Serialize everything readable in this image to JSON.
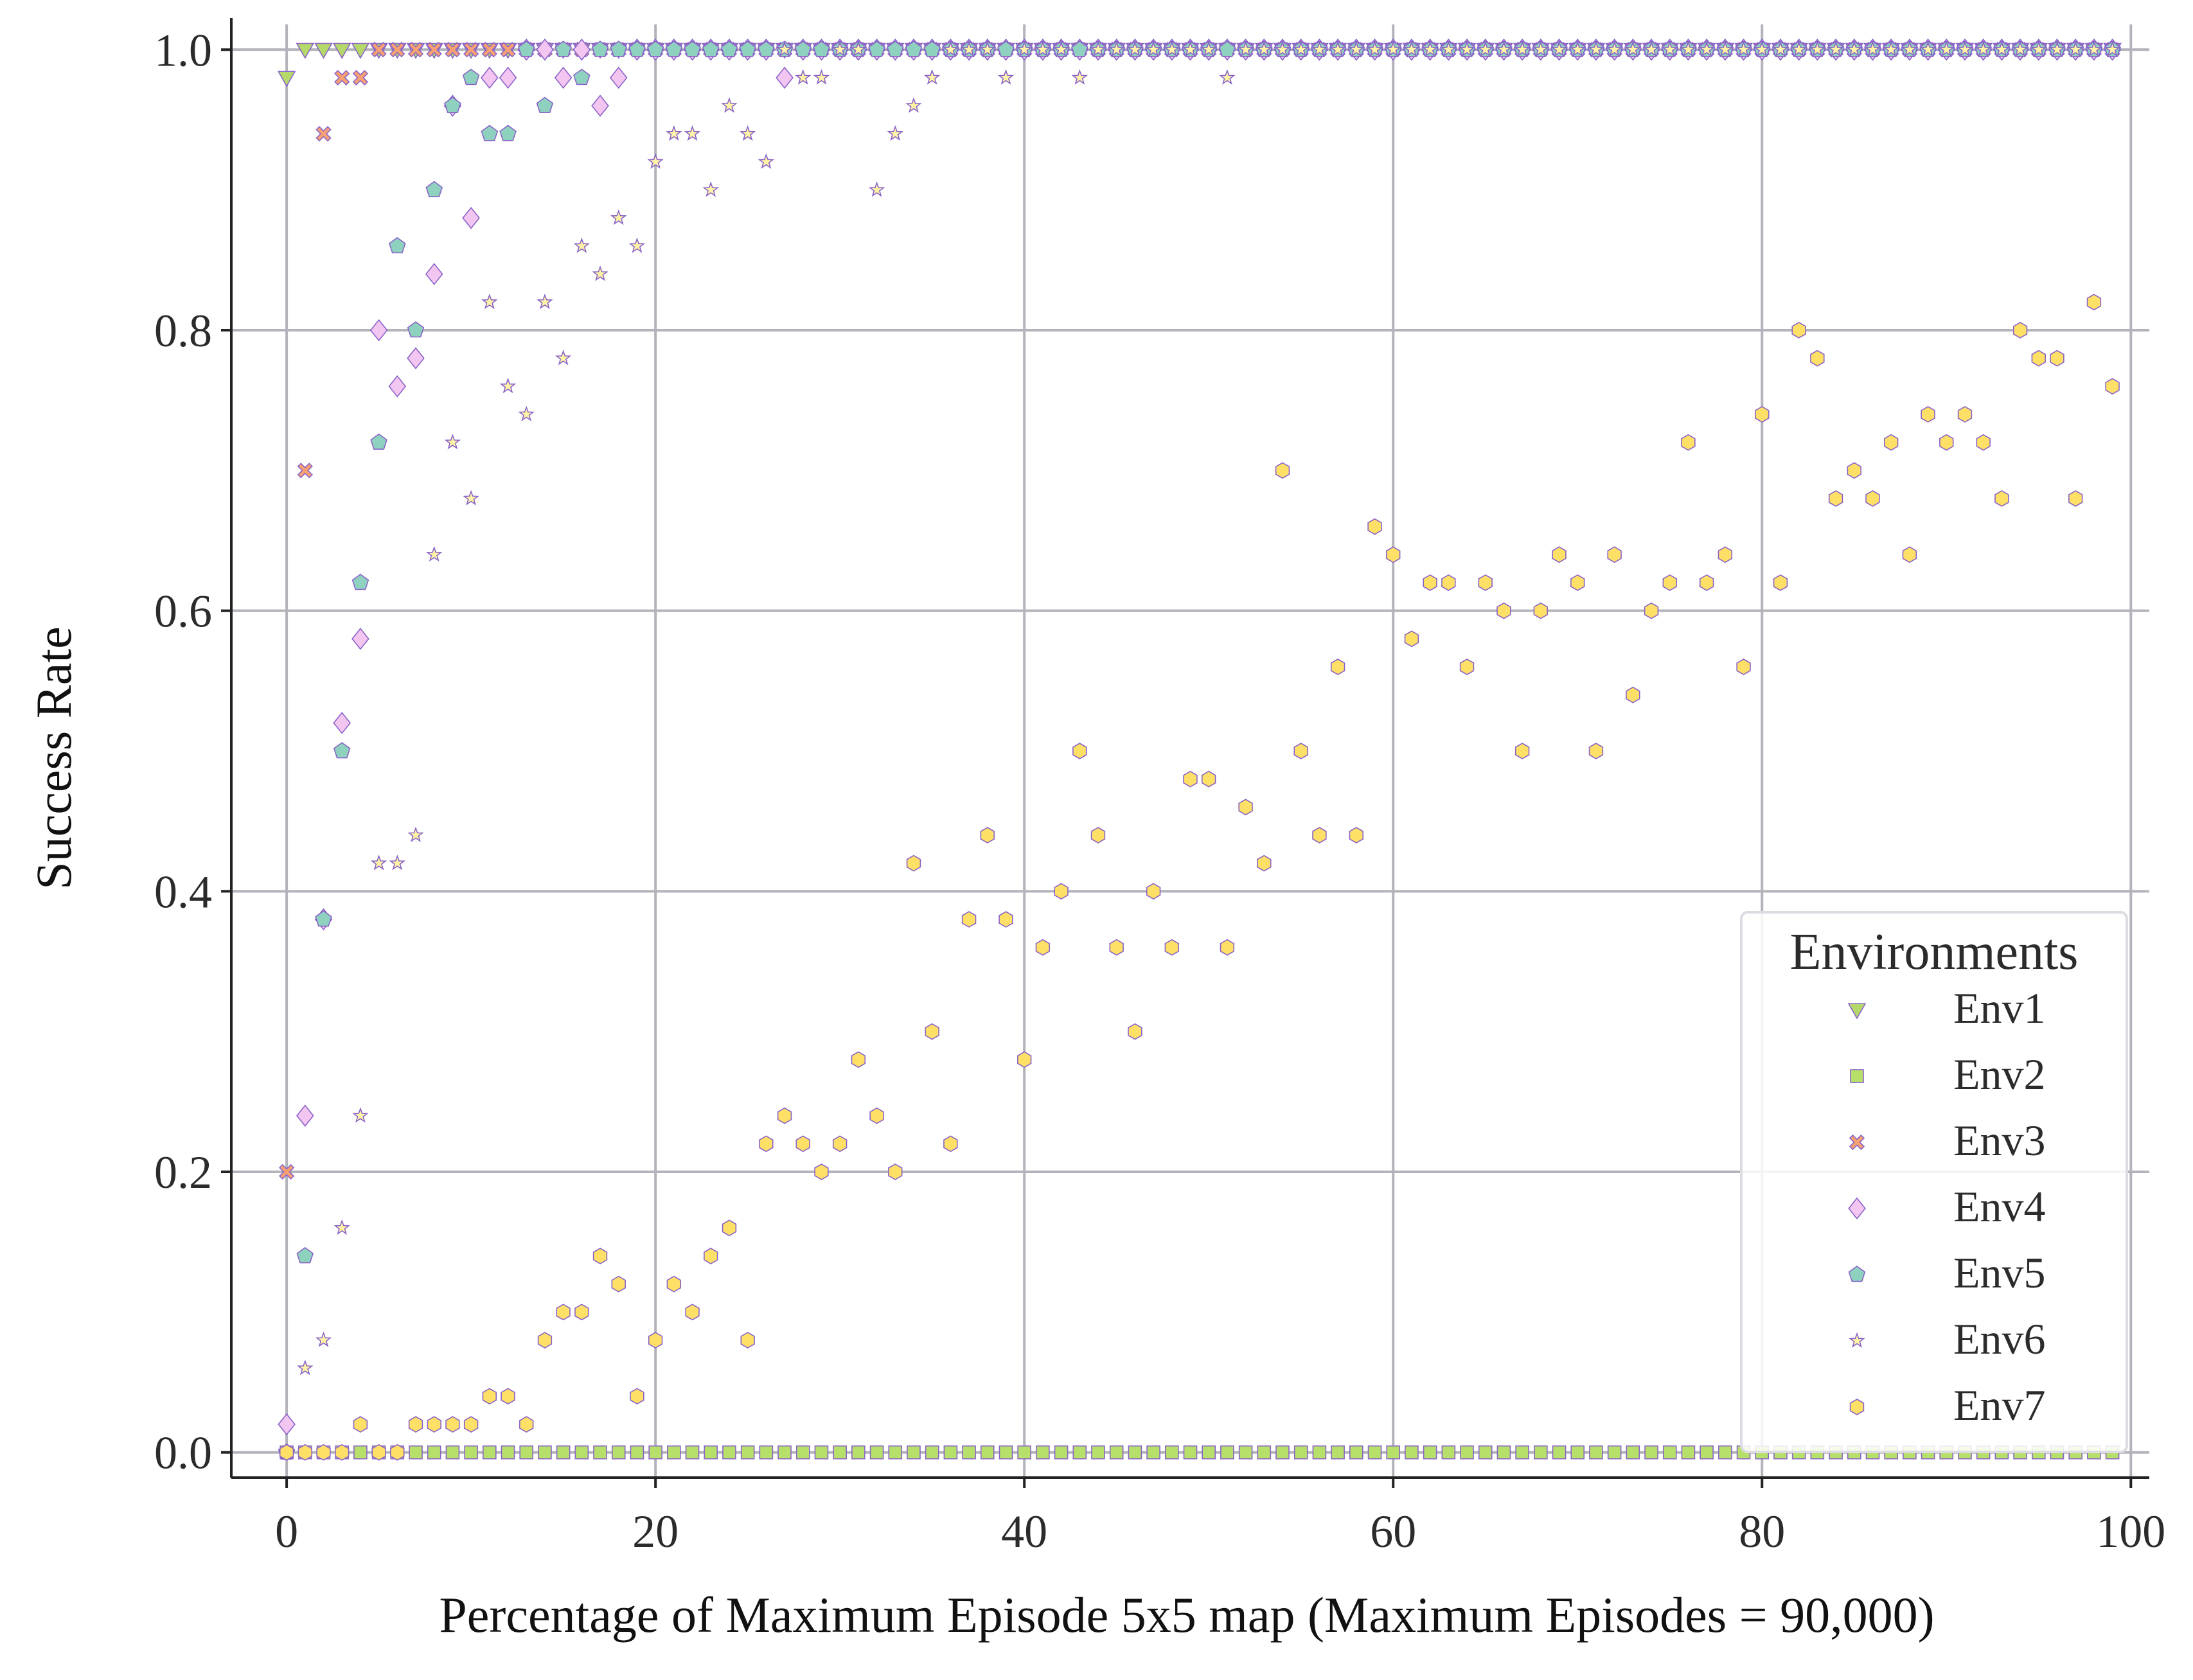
{
  "chart_data": {
    "type": "scatter",
    "title": "",
    "xlabel": "Percentage of Maximum Episode 5x5 map (Maximum Episodes = 90,000)",
    "ylabel": "Success Rate",
    "xlim": [
      -3,
      101
    ],
    "ylim": [
      -0.018,
      1.018
    ],
    "xticks": [
      0,
      20,
      40,
      60,
      80,
      100
    ],
    "yticks": [
      0.0,
      0.2,
      0.4,
      0.6,
      0.8,
      1.0
    ],
    "xtick_labels": [
      "0",
      "20",
      "40",
      "60",
      "80",
      "100"
    ],
    "ytick_labels": [
      "0.0",
      "0.2",
      "0.4",
      "0.6",
      "0.8",
      "1.0"
    ],
    "grid": true,
    "legend": {
      "title": "Environments",
      "placement": "lower-right"
    },
    "series": [
      {
        "name": "Env1",
        "marker": "triangle-down",
        "color": "#b5d86a",
        "x": [
          0,
          1,
          2,
          3,
          4,
          5
        ],
        "y": [
          0.98,
          1.0,
          1.0,
          1.0,
          1.0,
          1.0
        ],
        "note_continuation": "1.0 for x = 6..99"
      },
      {
        "name": "Env2",
        "marker": "square",
        "color": "#b7e06a",
        "x": [
          0,
          1,
          2,
          3,
          4,
          5,
          6,
          7,
          8,
          9,
          10
        ],
        "y": [
          0.0,
          0.0,
          0.0,
          0.0,
          0.0,
          0.0,
          0.0,
          0.0,
          0.0,
          0.0,
          0.0
        ],
        "note_continuation": "0.0 for x = 11..99"
      },
      {
        "name": "Env3",
        "marker": "x",
        "color": "#f7a072",
        "x": [
          0,
          1,
          2,
          3,
          4,
          5
        ],
        "y": [
          0.2,
          0.7,
          0.94,
          0.98,
          0.98,
          1.0
        ],
        "note_continuation": "1.0 for x = 6..99"
      },
      {
        "name": "Env4",
        "marker": "diamond",
        "color": "#f3c6f2",
        "x": [
          0,
          1,
          2,
          3,
          4,
          5,
          6,
          7,
          8,
          9,
          10,
          11,
          12,
          13,
          14,
          15,
          16,
          17,
          18,
          19,
          20,
          21,
          22,
          23,
          24,
          25,
          26,
          27,
          28
        ],
        "y": [
          0.02,
          0.24,
          0.38,
          0.52,
          0.58,
          0.8,
          0.76,
          0.78,
          0.84,
          0.96,
          0.88,
          0.98,
          0.98,
          1.0,
          1.0,
          0.98,
          1.0,
          0.96,
          0.98,
          1.0,
          1.0,
          1.0,
          1.0,
          1.0,
          1.0,
          1.0,
          1.0,
          0.98,
          1.0
        ],
        "note_continuation": "1.0 for x = 29..99"
      },
      {
        "name": "Env5",
        "marker": "pentagon",
        "color": "#8fd1bf",
        "x": [
          0,
          1,
          2,
          3,
          4,
          5,
          6,
          7,
          8,
          9,
          10,
          11,
          12,
          13,
          14,
          15,
          16,
          17,
          18,
          19,
          20
        ],
        "y": [
          0.0,
          0.14,
          0.38,
          0.5,
          0.62,
          0.72,
          0.86,
          0.8,
          0.9,
          0.96,
          0.98,
          0.94,
          0.94,
          1.0,
          0.96,
          1.0,
          0.98,
          1.0,
          1.0,
          1.0,
          1.0
        ],
        "note_continuation": "1.0 for x = 21..99"
      },
      {
        "name": "Env6",
        "marker": "star",
        "color": "#fff4a6",
        "x": [
          0,
          1,
          2,
          3,
          4,
          5,
          6,
          7,
          8,
          9,
          10,
          11,
          12,
          13,
          14,
          15,
          16,
          17,
          18,
          19,
          20,
          21,
          22,
          23,
          24,
          25,
          26,
          27,
          28,
          29,
          30,
          31,
          32,
          33,
          34,
          35,
          36,
          37,
          38,
          39,
          40,
          41,
          42,
          43,
          44,
          45,
          46,
          47,
          48,
          49,
          50,
          51,
          52
        ],
        "y": [
          0.0,
          0.06,
          0.08,
          0.16,
          0.24,
          0.42,
          0.42,
          0.44,
          0.64,
          0.72,
          0.68,
          0.82,
          0.76,
          0.74,
          0.82,
          0.78,
          0.86,
          0.84,
          0.88,
          0.86,
          0.92,
          0.94,
          0.94,
          0.9,
          0.96,
          0.94,
          0.92,
          1.0,
          0.98,
          0.98,
          1.0,
          1.0,
          0.9,
          0.94,
          0.96,
          0.98,
          1.0,
          1.0,
          1.0,
          0.98,
          1.0,
          1.0,
          1.0,
          0.98,
          1.0,
          1.0,
          1.0,
          1.0,
          1.0,
          1.0,
          1.0,
          0.98,
          1.0
        ],
        "note_continuation": "1.0 for x = 53..99"
      },
      {
        "name": "Env7",
        "marker": "hexagon",
        "color": "#ffe066",
        "x": [
          0,
          1,
          2,
          3,
          4,
          5,
          6,
          7,
          8,
          9,
          10,
          11,
          12,
          13,
          14,
          15,
          16,
          17,
          18,
          19,
          20,
          21,
          22,
          23,
          24,
          25,
          26,
          27,
          28,
          29,
          30,
          31,
          32,
          33,
          34,
          35,
          36,
          37,
          38,
          39,
          40,
          41,
          42,
          43,
          44,
          45,
          46,
          47,
          48,
          49,
          50,
          51,
          52,
          53,
          54,
          55,
          56,
          57,
          58,
          59,
          60,
          61,
          62,
          63,
          64,
          65,
          66,
          67,
          68,
          69,
          70,
          71,
          72,
          73,
          74,
          75,
          76,
          77,
          78,
          79,
          80,
          81,
          82,
          83,
          84,
          85,
          86,
          87,
          88,
          89,
          90,
          91,
          92,
          93,
          94,
          95,
          96,
          97,
          98,
          99
        ],
        "y": [
          0.0,
          0.0,
          0.0,
          0.0,
          0.02,
          0.0,
          0.0,
          0.02,
          0.02,
          0.02,
          0.02,
          0.04,
          0.04,
          0.02,
          0.08,
          0.1,
          0.1,
          0.14,
          0.12,
          0.04,
          0.08,
          0.12,
          0.1,
          0.14,
          0.16,
          0.08,
          0.22,
          0.24,
          0.22,
          0.2,
          0.22,
          0.28,
          0.24,
          0.2,
          0.42,
          0.3,
          0.22,
          0.38,
          0.44,
          0.38,
          0.28,
          0.36,
          0.4,
          0.5,
          0.44,
          0.36,
          0.3,
          0.4,
          0.36,
          0.48,
          0.48,
          0.36,
          0.46,
          0.42,
          0.7,
          0.5,
          0.44,
          0.56,
          0.44,
          0.66,
          0.64,
          0.58,
          0.62,
          0.62,
          0.56,
          0.62,
          0.6,
          0.5,
          0.6,
          0.64,
          0.62,
          0.5,
          0.64,
          0.54,
          0.6,
          0.62,
          0.72,
          0.62,
          0.64,
          0.56,
          0.74,
          0.62,
          0.8,
          0.78,
          0.68,
          0.7,
          0.68,
          0.72,
          0.64,
          0.74,
          0.72,
          0.74,
          0.72,
          0.68,
          0.8,
          0.78,
          0.78,
          0.68,
          0.82,
          0.76
        ]
      }
    ]
  }
}
